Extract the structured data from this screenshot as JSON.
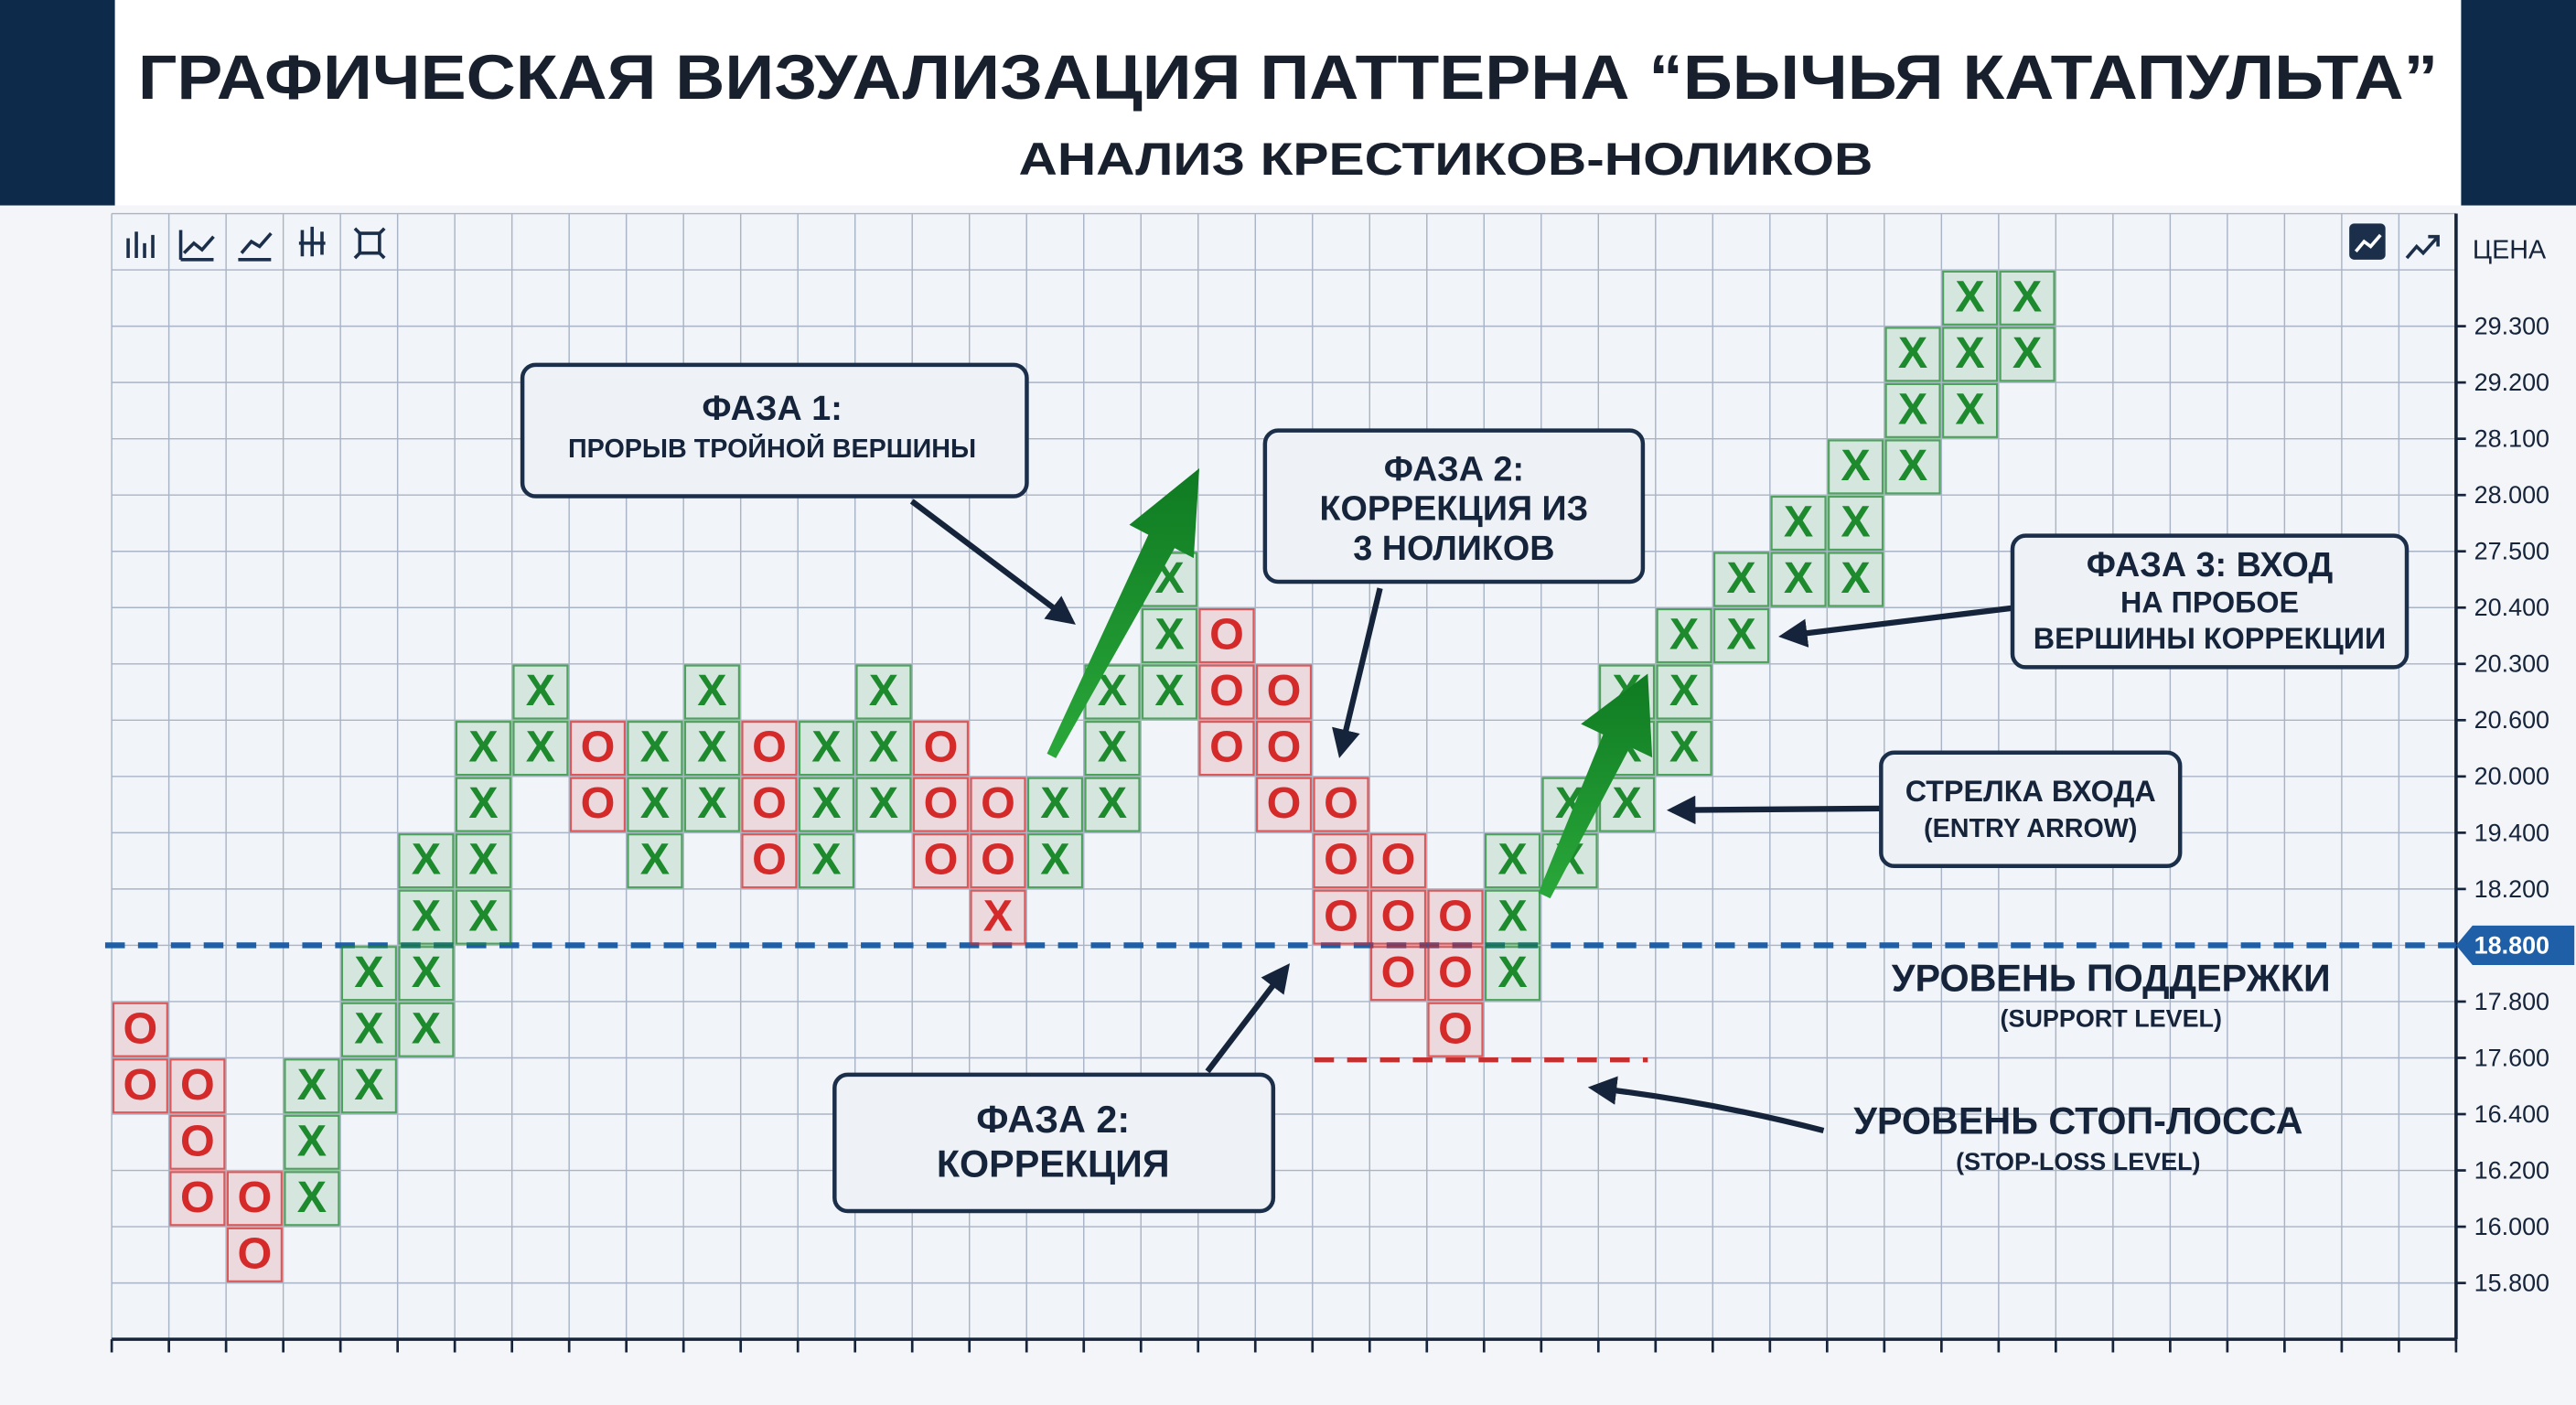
{
  "header": {
    "title": "ГРАФИЧЕСКАЯ ВИЗУАЛИЗАЦИЯ ПАТТЕРНА “БЫЧЬЯ КАТАПУЛЬТА”",
    "subtitle": "АНАЛИЗ КРЕСТИКОВ-НОЛИКОВ"
  },
  "axis": {
    "title": "ЦЕНА",
    "labels": [
      "29.300",
      "29.200",
      "28.100",
      "28.000",
      "27.500",
      "20.400",
      "20.300",
      "20.600",
      "20.000",
      "19.400",
      "18.200",
      "18.800",
      "17.800",
      "17.600",
      "16.400",
      "16.200",
      "16.000",
      "15.800"
    ]
  },
  "colors": {
    "X": "#1e8a2e",
    "O": "#d42a2a"
  },
  "cells": [
    {},
    {
      "32": "X",
      "33": "X"
    },
    {
      "31": "X",
      "32": "X",
      "33": "X"
    },
    {
      "31": "X",
      "32": "X"
    },
    {
      "30": "X",
      "31": "X"
    },
    {
      "29": "X",
      "30": "X"
    },
    {
      "18": "X",
      "28": "X",
      "29": "X",
      "30": "X"
    },
    {
      "18": "X",
      "19": "O",
      "27": "X",
      "28": "X"
    },
    {
      "7": "X",
      "10": "X",
      "13": "X",
      "17": "X",
      "18": "X",
      "19": "O",
      "20": "O",
      "26": "X",
      "27": "X"
    },
    {
      "6": "X",
      "7": "X",
      "8": "O",
      "9": "X",
      "10": "X",
      "11": "O",
      "12": "X",
      "13": "X",
      "14": "O",
      "17": "X",
      "19": "O",
      "20": "O",
      "26": "X",
      "27": "X"
    },
    {
      "6": "X",
      "8": "O",
      "9": "X",
      "10": "X",
      "11": "O",
      "12": "X",
      "13": "X",
      "14": "O",
      "15": "O",
      "16": "X",
      "17": "X",
      "20": "O",
      "21": "O",
      "25": "X",
      "26": "X"
    },
    {
      "5": "X",
      "6": "X",
      "9": "X",
      "11": "O",
      "12": "X",
      "14": "O",
      "15": "O",
      "16": "X",
      "21": "O",
      "22": "O",
      "24": "X",
      "25": "X"
    },
    {
      "5": "X",
      "6": "X",
      "15": {
        "symbol": "X",
        "color": "#d42a2a"
      },
      "21": "O",
      "22": "O",
      "23": "O",
      "24": "X"
    },
    {
      "4": "X",
      "5": "X",
      "22": "O",
      "23": "O",
      "24": "X"
    },
    {
      "0": "O",
      "4": "X",
      "5": "X",
      "23": "O"
    },
    {
      "0": "O",
      "1": "O",
      "3": "X",
      "4": "X"
    },
    {
      "1": "O",
      "3": "X"
    },
    {
      "1": "O",
      "2": "O",
      "3": "X"
    },
    {
      "2": "O"
    },
    {}
  ],
  "annotations": {
    "phase1": [
      "ФАЗА 1:",
      "ПРОРЫВ ТРОЙНОЙ ВЕРШИНЫ"
    ],
    "phase2_top": [
      "ФАЗА 2:",
      "КОРРЕКЦИЯ ИЗ",
      "3 НОЛИКОВ"
    ],
    "phase3": [
      "ФАЗА 3: ВХОД",
      "НА ПРОБОЕ",
      "ВЕРШИНЫ КОРРЕКЦИИ"
    ],
    "entry": [
      "СТРЕЛКА ВХОДА",
      "(ENTRY ARROW)"
    ],
    "phase2_bottom": [
      "ФАЗА 2:",
      "КОРРЕКЦИЯ"
    ]
  },
  "support": {
    "label": "УРОВЕНЬ ПОДДЕРЖКИ",
    "sublabel": "(SUPPORT LEVEL)"
  },
  "stop_loss": {
    "label": "УРОВЕНЬ СТОП-ЛОССА",
    "sublabel": "(STOP-LOSS LEVEL)"
  }
}
